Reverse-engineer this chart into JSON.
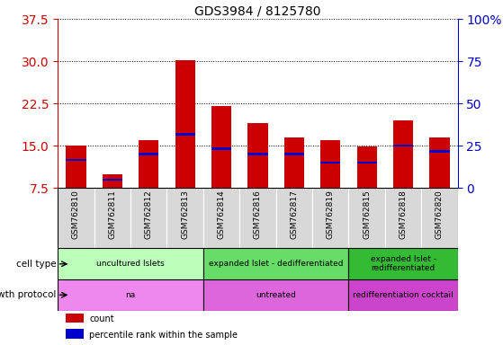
{
  "title": "GDS3984 / 8125780",
  "samples": [
    "GSM762810",
    "GSM762811",
    "GSM762812",
    "GSM762813",
    "GSM762814",
    "GSM762816",
    "GSM762817",
    "GSM762819",
    "GSM762815",
    "GSM762818",
    "GSM762820"
  ],
  "count_values": [
    15.0,
    10.0,
    16.0,
    30.2,
    22.0,
    19.0,
    16.5,
    16.0,
    14.8,
    19.5,
    16.5
  ],
  "percentile_values": [
    12.5,
    9.0,
    13.5,
    17.0,
    14.5,
    13.5,
    13.5,
    12.0,
    12.0,
    15.0,
    14.0
  ],
  "ymin": 7.5,
  "ymax": 37.5,
  "yticks_left": [
    7.5,
    15.0,
    22.5,
    30.0,
    37.5
  ],
  "yticks_right_vals": [
    "0",
    "25",
    "50",
    "75",
    "100%"
  ],
  "cell_type_groups": [
    {
      "label": "uncultured Islets",
      "start": 0,
      "end": 4,
      "color": "#bbffbb"
    },
    {
      "label": "expanded Islet - dedifferentiated",
      "start": 4,
      "end": 8,
      "color": "#66dd66"
    },
    {
      "label": "expanded Islet -\nredifferentiated",
      "start": 8,
      "end": 11,
      "color": "#33bb33"
    }
  ],
  "growth_protocol_groups": [
    {
      "label": "na",
      "start": 0,
      "end": 4,
      "color": "#ee88ee"
    },
    {
      "label": "untreated",
      "start": 4,
      "end": 8,
      "color": "#dd66dd"
    },
    {
      "label": "redifferentiation cocktail",
      "start": 8,
      "end": 11,
      "color": "#cc44cc"
    }
  ],
  "bar_color_red": "#cc0000",
  "bar_color_blue": "#0000cc",
  "bar_width": 0.55,
  "left_tick_color": "#cc0000",
  "right_tick_color": "#0000cc",
  "sample_bg_color": "#d8d8d8",
  "legend_items": [
    {
      "label": "count",
      "color": "#cc0000"
    },
    {
      "label": "percentile rank within the sample",
      "color": "#0000cc"
    }
  ]
}
